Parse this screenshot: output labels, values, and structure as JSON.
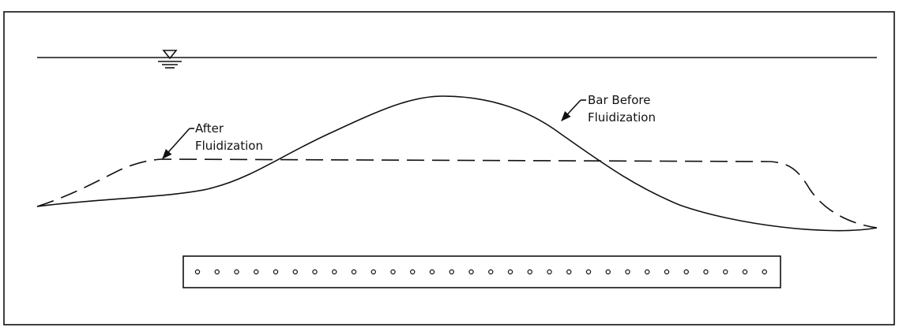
{
  "labels": [
    {
      "lines": [
        "After",
        "Fluidization"
      ]
    },
    {
      "lines": [
        "Bar Before",
        "Fluidization"
      ]
    }
  ]
}
